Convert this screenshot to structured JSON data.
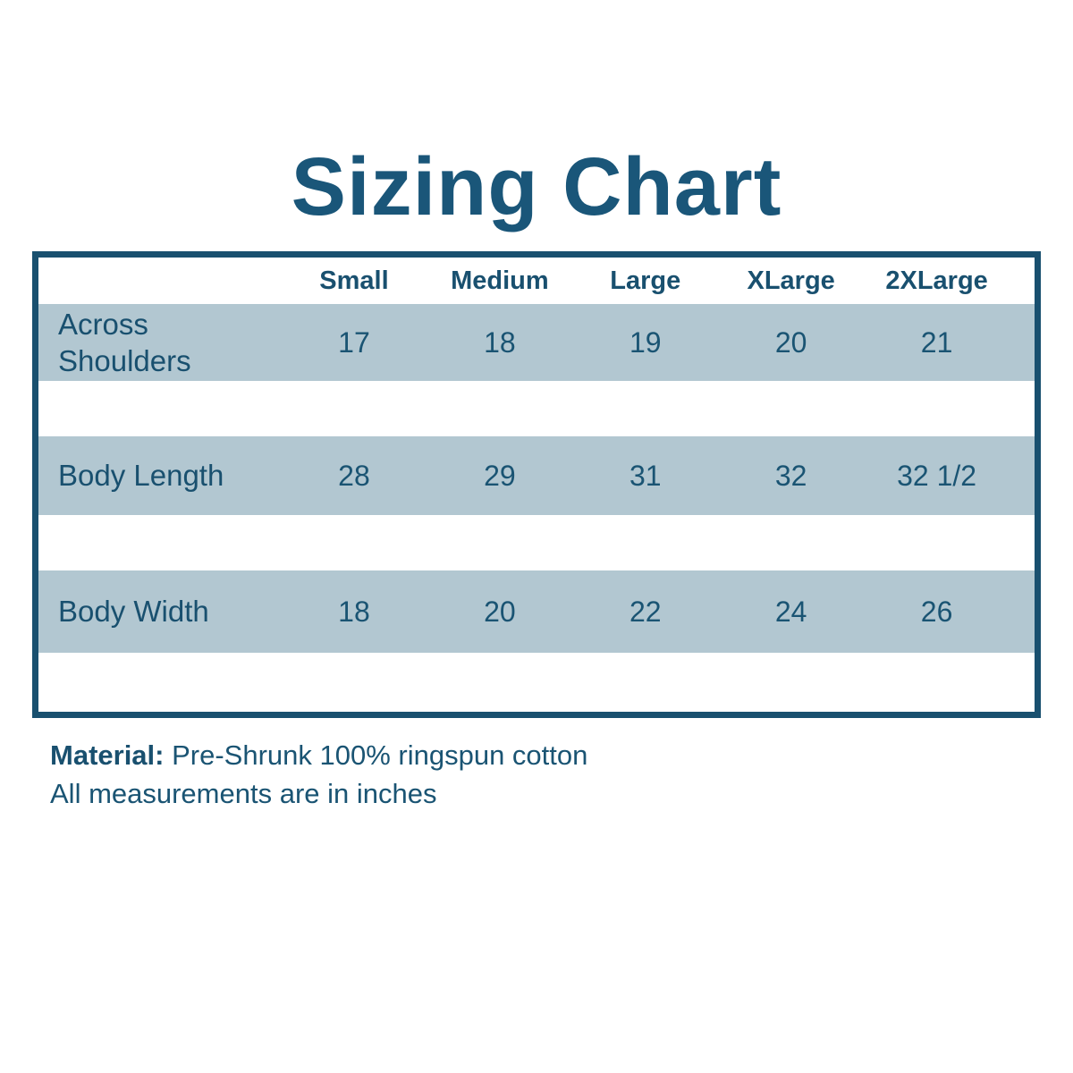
{
  "chart_data": {
    "type": "table",
    "title": "Sizing Chart",
    "columns": [
      "Small",
      "Medium",
      "Large",
      "XLarge",
      "2XLarge"
    ],
    "rows": [
      {
        "label": "Across Shoulders",
        "values": [
          "17",
          "18",
          "19",
          "20",
          "21"
        ]
      },
      {
        "label": "Body Length",
        "values": [
          "28",
          "29",
          "31",
          "32",
          "32 1/2"
        ]
      },
      {
        "label": "Body Width",
        "values": [
          "18",
          "20",
          "22",
          "24",
          "26"
        ]
      }
    ],
    "unit": "inches",
    "layout_hints": {
      "striped_rows": true,
      "band_color": "#b2c7d1",
      "accent_color": "#19506f",
      "background": "#ffffff"
    }
  },
  "footer": {
    "material_label": "Material:",
    "material_value": " Pre-Shrunk 100% ringspun cotton",
    "note": "All measurements are in inches"
  }
}
